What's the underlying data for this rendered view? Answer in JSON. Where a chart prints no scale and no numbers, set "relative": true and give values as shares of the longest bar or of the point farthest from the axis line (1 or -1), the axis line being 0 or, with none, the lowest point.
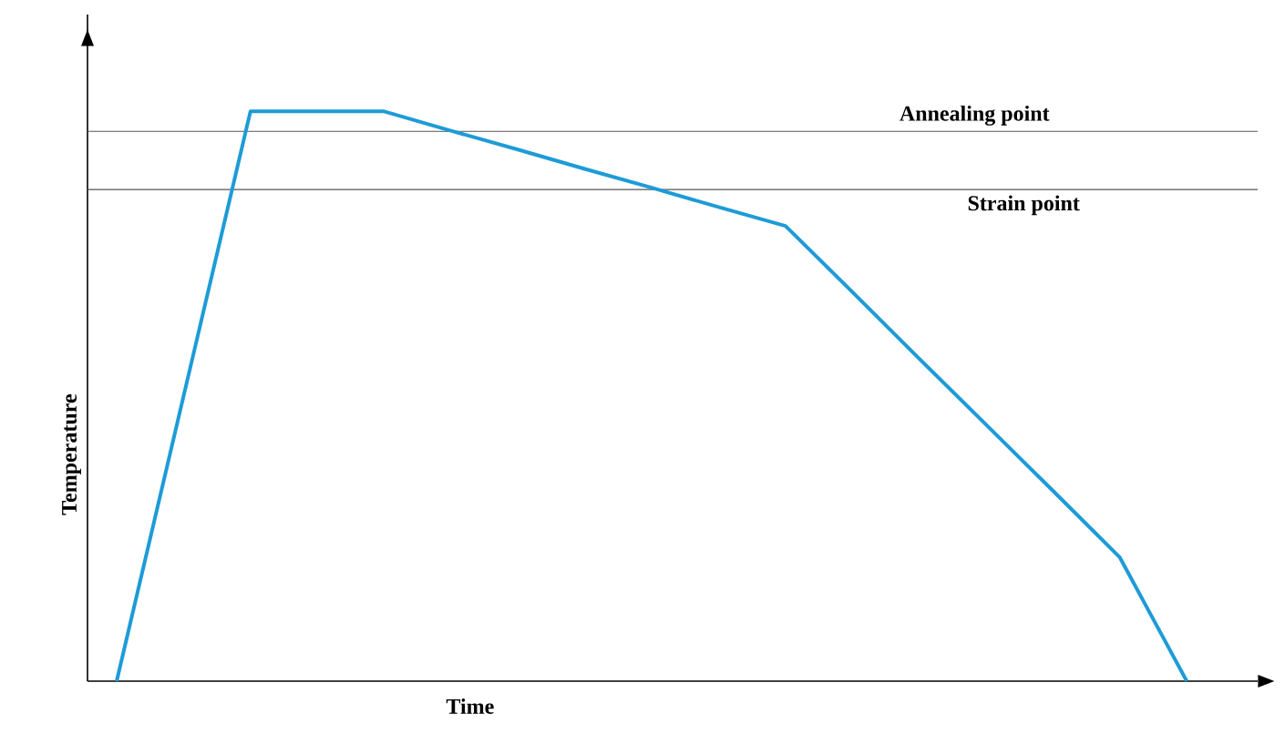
{
  "chart_data": {
    "type": "line",
    "relative": true,
    "xlabel": "Time",
    "ylabel": "Temperature",
    "categories": [
      null,
      null,
      null,
      null,
      null,
      null,
      null,
      null,
      null,
      null,
      null,
      null,
      null,
      null,
      null,
      null,
      null
    ],
    "series": [
      {
        "color": "#1e9bd7",
        "values": [
          0,
          0.5,
          1,
          1,
          1,
          0.966,
          0.933,
          0.899,
          0.866,
          0.832,
          0.799,
          0.683,
          0.566,
          0.45,
          0.334,
          0.217,
          0
        ]
      }
    ],
    "ref_lines": [
      {
        "axis": "y",
        "value": 0.965,
        "label": "Annealing point",
        "color": "#555555"
      },
      {
        "axis": "y",
        "value": 0.863,
        "label": "Strain point",
        "color": "#555555"
      }
    ],
    "marker": "none",
    "line_style": "solid"
  }
}
